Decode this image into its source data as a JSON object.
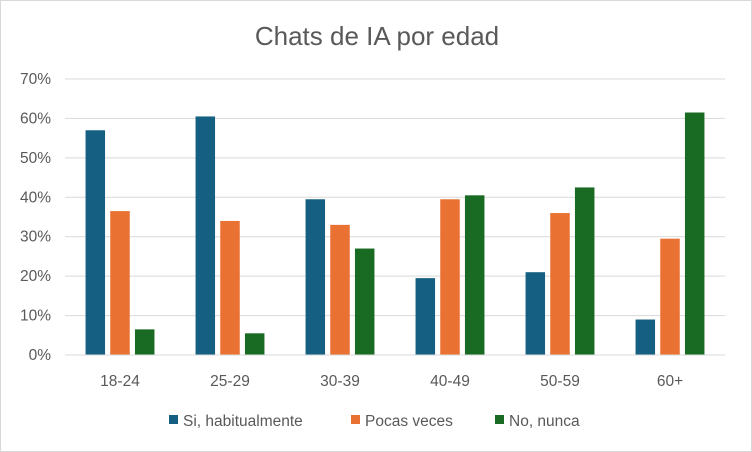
{
  "chart_data": {
    "type": "bar",
    "title": "Chats de IA por edad",
    "xlabel": "",
    "ylabel": "",
    "categories": [
      "18-24",
      "25-29",
      "30-39",
      "40-49",
      "50-59",
      "60+"
    ],
    "series": [
      {
        "name": "Si, habitualmente",
        "color": "#156082",
        "values": [
          57,
          60.5,
          39.5,
          19.5,
          21,
          9
        ]
      },
      {
        "name": "Pocas veces",
        "color": "#e97132",
        "values": [
          36.5,
          34,
          33,
          39.5,
          36,
          29.5
        ]
      },
      {
        "name": "No, nunca",
        "color": "#196b24",
        "values": [
          6.5,
          5.5,
          27,
          40.5,
          42.5,
          61.5
        ]
      }
    ],
    "ylim": [
      0,
      70
    ],
    "yticks": [
      "0%",
      "10%",
      "20%",
      "30%",
      "40%",
      "50%",
      "60%",
      "70%"
    ],
    "ytick_values": [
      0,
      10,
      20,
      30,
      40,
      50,
      60,
      70
    ],
    "grid": true,
    "grid_color": "#d9d9d9",
    "legend_position": "bottom"
  }
}
